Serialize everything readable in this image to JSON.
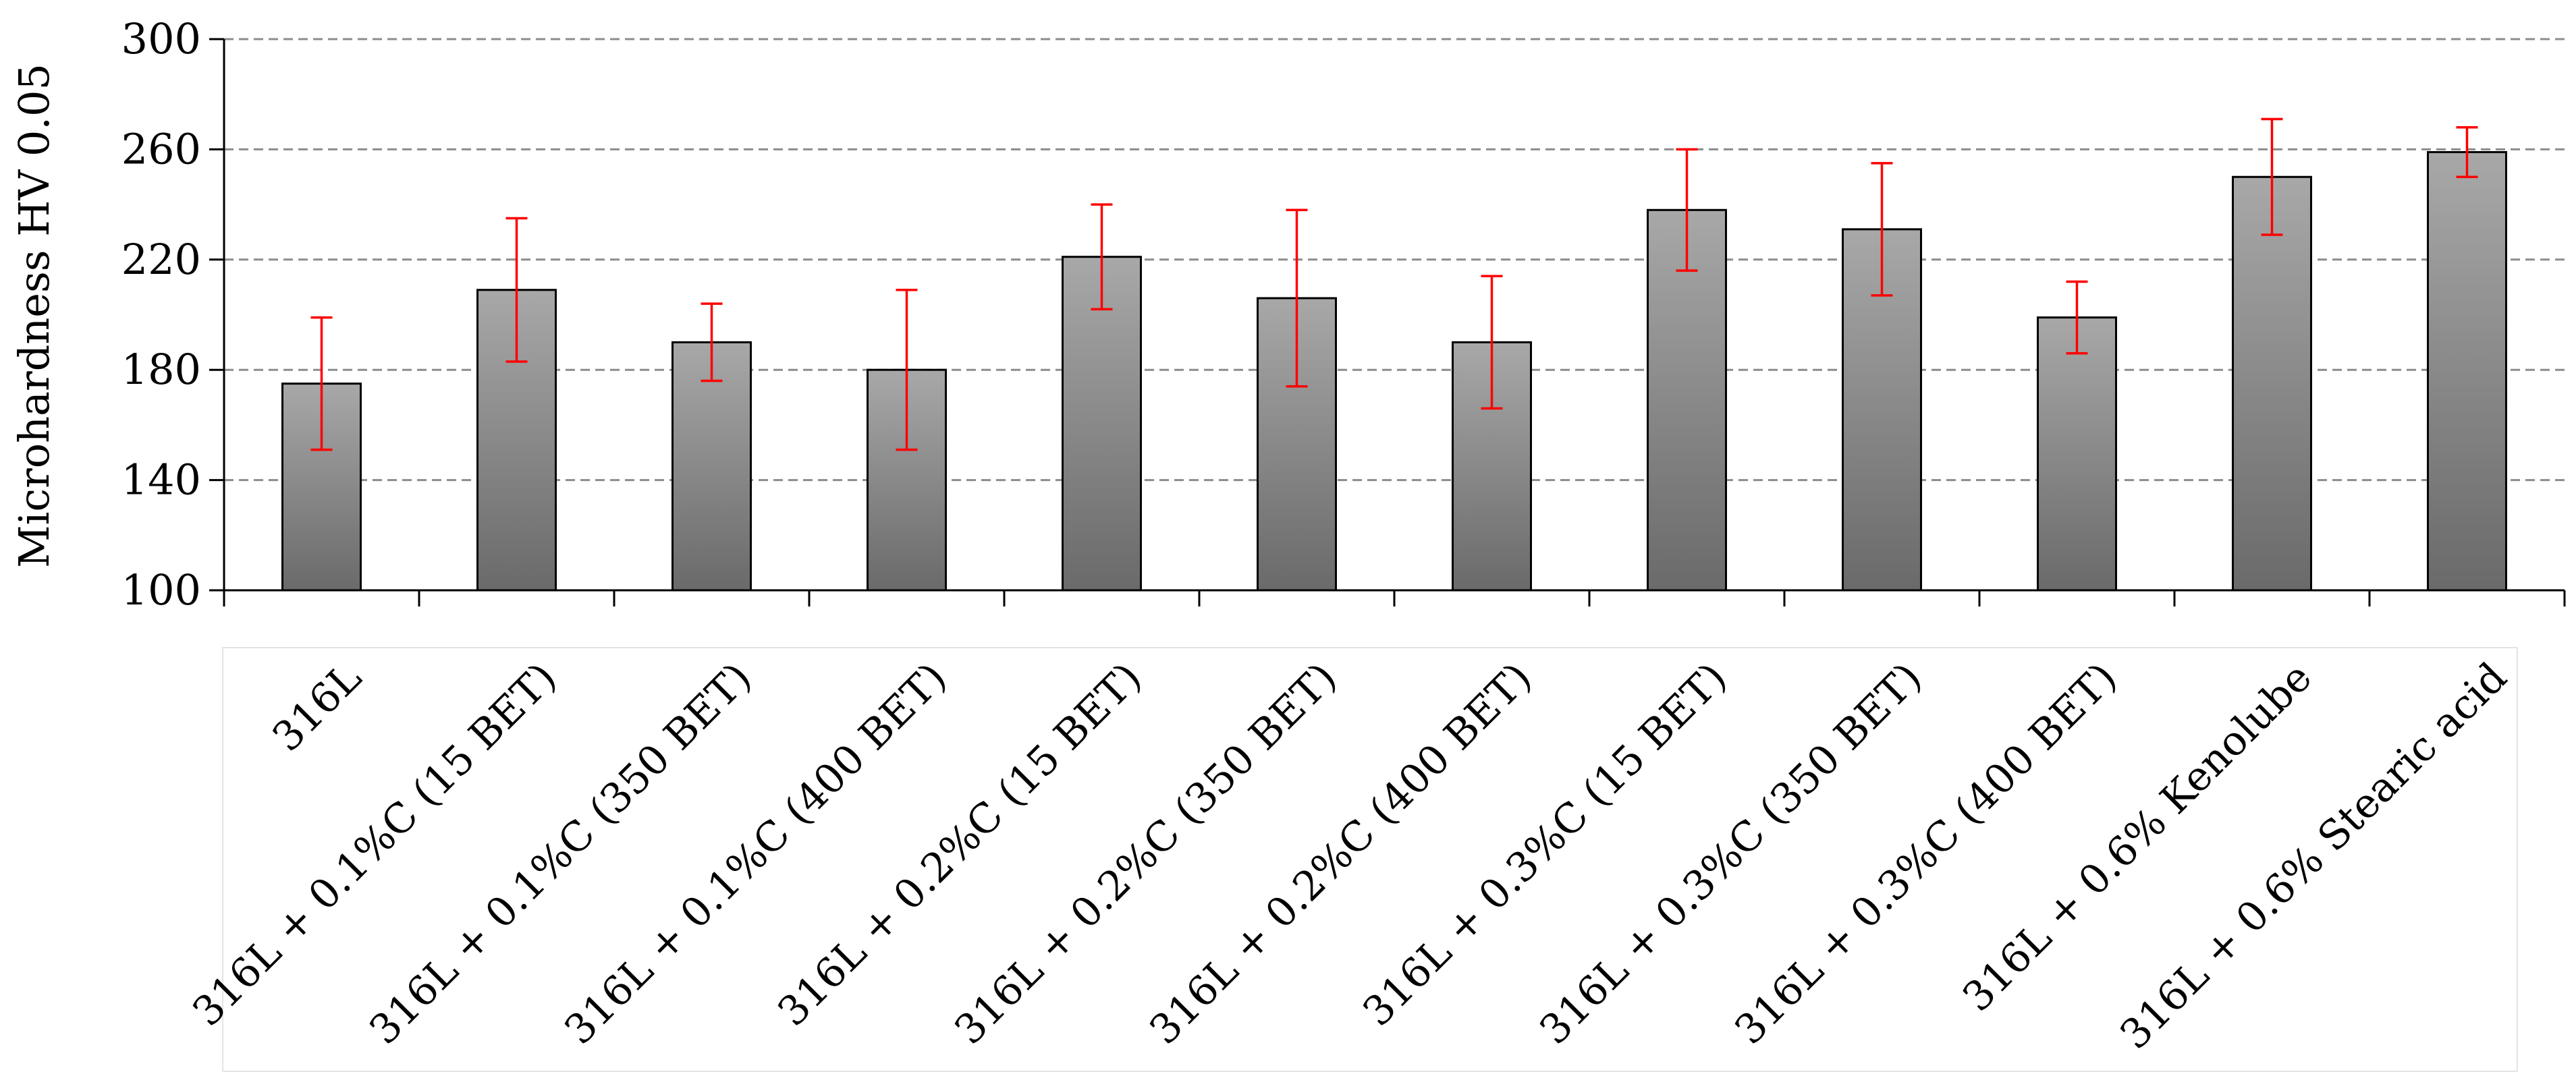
{
  "chart_data": {
    "type": "bar",
    "ylabel": "Microhardness HV 0.05",
    "ylim": [
      100,
      300
    ],
    "yticks": [
      100,
      140,
      180,
      220,
      260,
      300
    ],
    "grid": true,
    "categories": [
      "316L",
      "316L + 0.1%C (15 BET)",
      "316L + 0.1%C (350 BET)",
      "316L + 0.1%C (400 BET)",
      "316L + 0.2%C (15 BET)",
      "316L + 0.2%C (350 BET)",
      "316L + 0.2%C (400 BET)",
      "316L + 0.3%C (15 BET)",
      "316L + 0.3%C (350 BET)",
      "316L + 0.3%C (400 BET)",
      "316L + 0.6% Kenolube",
      "316L + 0.6% Stearic acid"
    ],
    "values": [
      175,
      209,
      190,
      180,
      221,
      206,
      190,
      238,
      231,
      199,
      250,
      259
    ],
    "errors": [
      24,
      26,
      14,
      29,
      19,
      32,
      24,
      22,
      24,
      13,
      21,
      9
    ],
    "bar_color": "#808080",
    "error_color": "#ff0000"
  }
}
